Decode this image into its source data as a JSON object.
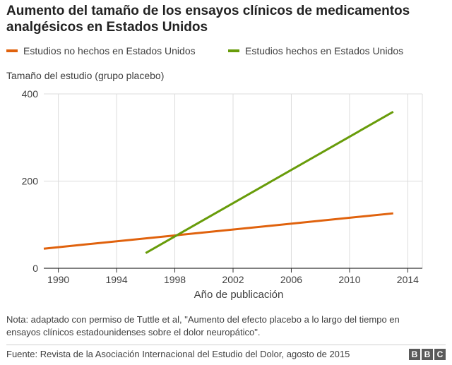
{
  "header": {
    "title": "Aumento del tamaño de los ensayos clínicos de medicamentos analgésicos en Estados Unidos"
  },
  "legend": {
    "items": [
      {
        "label": "Estudios no hechos en Estados Unidos",
        "color": "#e0620d"
      },
      {
        "label": "Estudios hechos en Estados Unidos",
        "color": "#689c0a"
      }
    ]
  },
  "chart_data": {
    "type": "line",
    "title": "Aumento del tamaño de los ensayos clínicos de medicamentos analgésicos en Estados Unidos",
    "ylabel": "Tamaño del estudio (grupo placebo)",
    "xlabel": "Año de publicación",
    "xlim": [
      1989,
      2015
    ],
    "ylim": [
      0,
      400
    ],
    "x_ticks": [
      1990,
      1994,
      1998,
      2002,
      2006,
      2010,
      2014
    ],
    "y_ticks": [
      0,
      200,
      400
    ],
    "grid": true,
    "legend_position": "top",
    "series": [
      {
        "name": "Estudios no hechos en Estados Unidos",
        "color": "#e0620d",
        "x": [
          1989,
          2013
        ],
        "y": [
          45,
          126
        ]
      },
      {
        "name": "Estudios hechos en Estados Unidos",
        "color": "#689c0a",
        "x": [
          1996,
          2013
        ],
        "y": [
          35,
          359
        ]
      }
    ]
  },
  "note": {
    "text": "Nota: adaptado con permiso de Tuttle et al, \"Aumento del efecto placebo a lo largo del tiempo en ensayos clínicos estadounidenses sobre el dolor neuropático\"."
  },
  "footer": {
    "source": "Fuente: Revista de la Asociación Internacional del Estudio del Dolor, agosto de 2015",
    "logo_letters": [
      "B",
      "B",
      "C"
    ]
  }
}
